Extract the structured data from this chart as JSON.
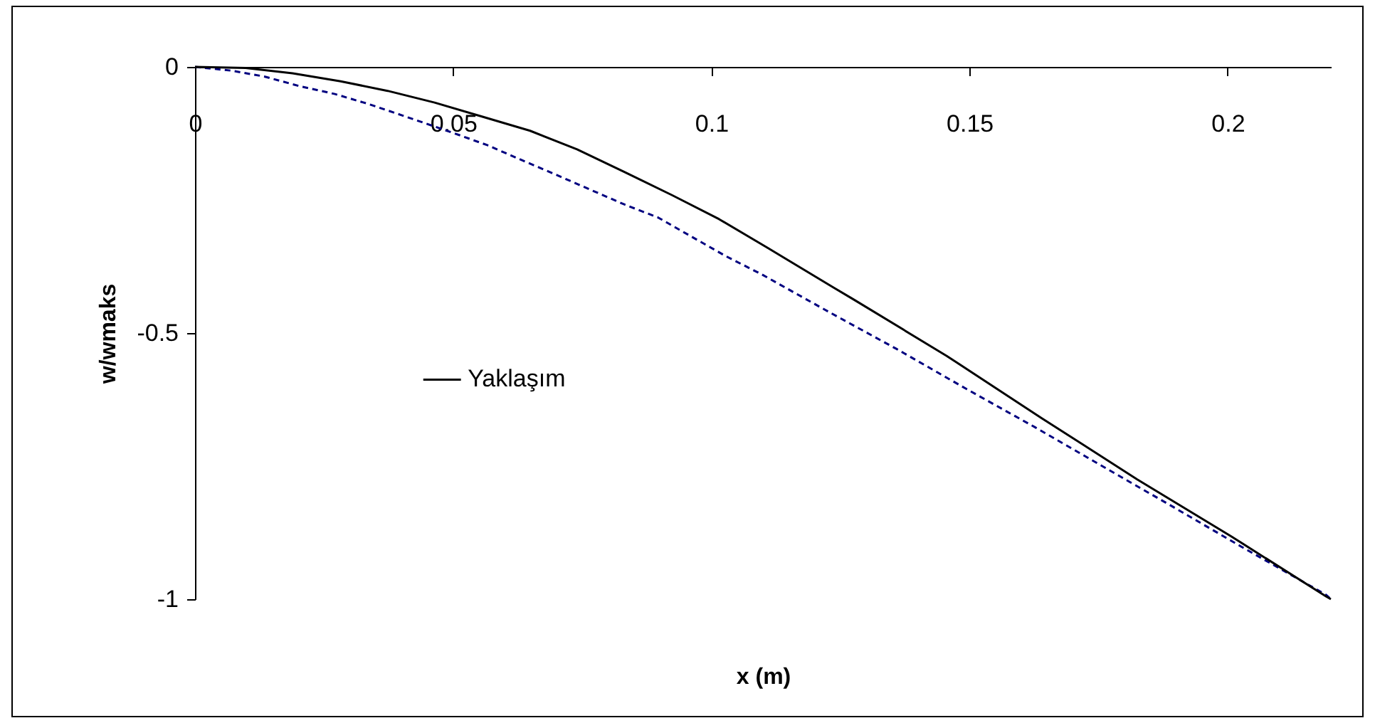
{
  "chart_data": {
    "type": "line",
    "xlabel": "x (m)",
    "ylabel": "w/wmaks",
    "xlim": [
      0,
      0.22
    ],
    "xticks": [
      0,
      0.05,
      0.1,
      0.15,
      0.2
    ],
    "ylim": [
      -1,
      0
    ],
    "yticks": [
      -1,
      -0.5,
      0
    ],
    "legend": "left",
    "series": [
      {
        "color": "#000080",
        "line_style": "dashed",
        "x": [
          0,
          0.007,
          0.0134,
          0.0202,
          0.0271,
          0.0337,
          0.0401,
          0.0503,
          0.0566,
          0.0635,
          0.0698,
          0.0764,
          0.0833,
          0.0897,
          0.096,
          0.1029,
          0.1098,
          0.1227,
          0.1359,
          0.1494,
          0.1627,
          0.1759,
          0.1888,
          0.2026,
          0.2191,
          0.22
        ],
        "values": [
          0,
          -0.007,
          -0.018,
          -0.036,
          -0.051,
          -0.07,
          -0.091,
          -0.125,
          -0.147,
          -0.176,
          -0.202,
          -0.23,
          -0.259,
          -0.283,
          -0.318,
          -0.356,
          -0.39,
          -0.46,
          -0.53,
          -0.605,
          -0.677,
          -0.751,
          -0.823,
          -0.901,
          -0.992,
          -1
        ]
      },
      {
        "name": "Yaklaşım",
        "color": "#000000",
        "line_style": "solid",
        "x": [
          0,
          0.0098,
          0.0189,
          0.0282,
          0.0373,
          0.0464,
          0.0558,
          0.0649,
          0.074,
          0.0833,
          0.0924,
          0.1015,
          0.1109,
          0.1145,
          0.1236,
          0.1274,
          0.1456,
          0.164,
          0.1825,
          0.2007,
          0.2191,
          0.22
        ],
        "values": [
          0,
          -0.002,
          -0.012,
          -0.027,
          -0.045,
          -0.067,
          -0.094,
          -0.12,
          -0.155,
          -0.198,
          -0.241,
          -0.286,
          -0.34,
          -0.361,
          -0.414,
          -0.436,
          -0.543,
          -0.66,
          -0.775,
          -0.882,
          -0.995,
          -1
        ]
      }
    ]
  }
}
